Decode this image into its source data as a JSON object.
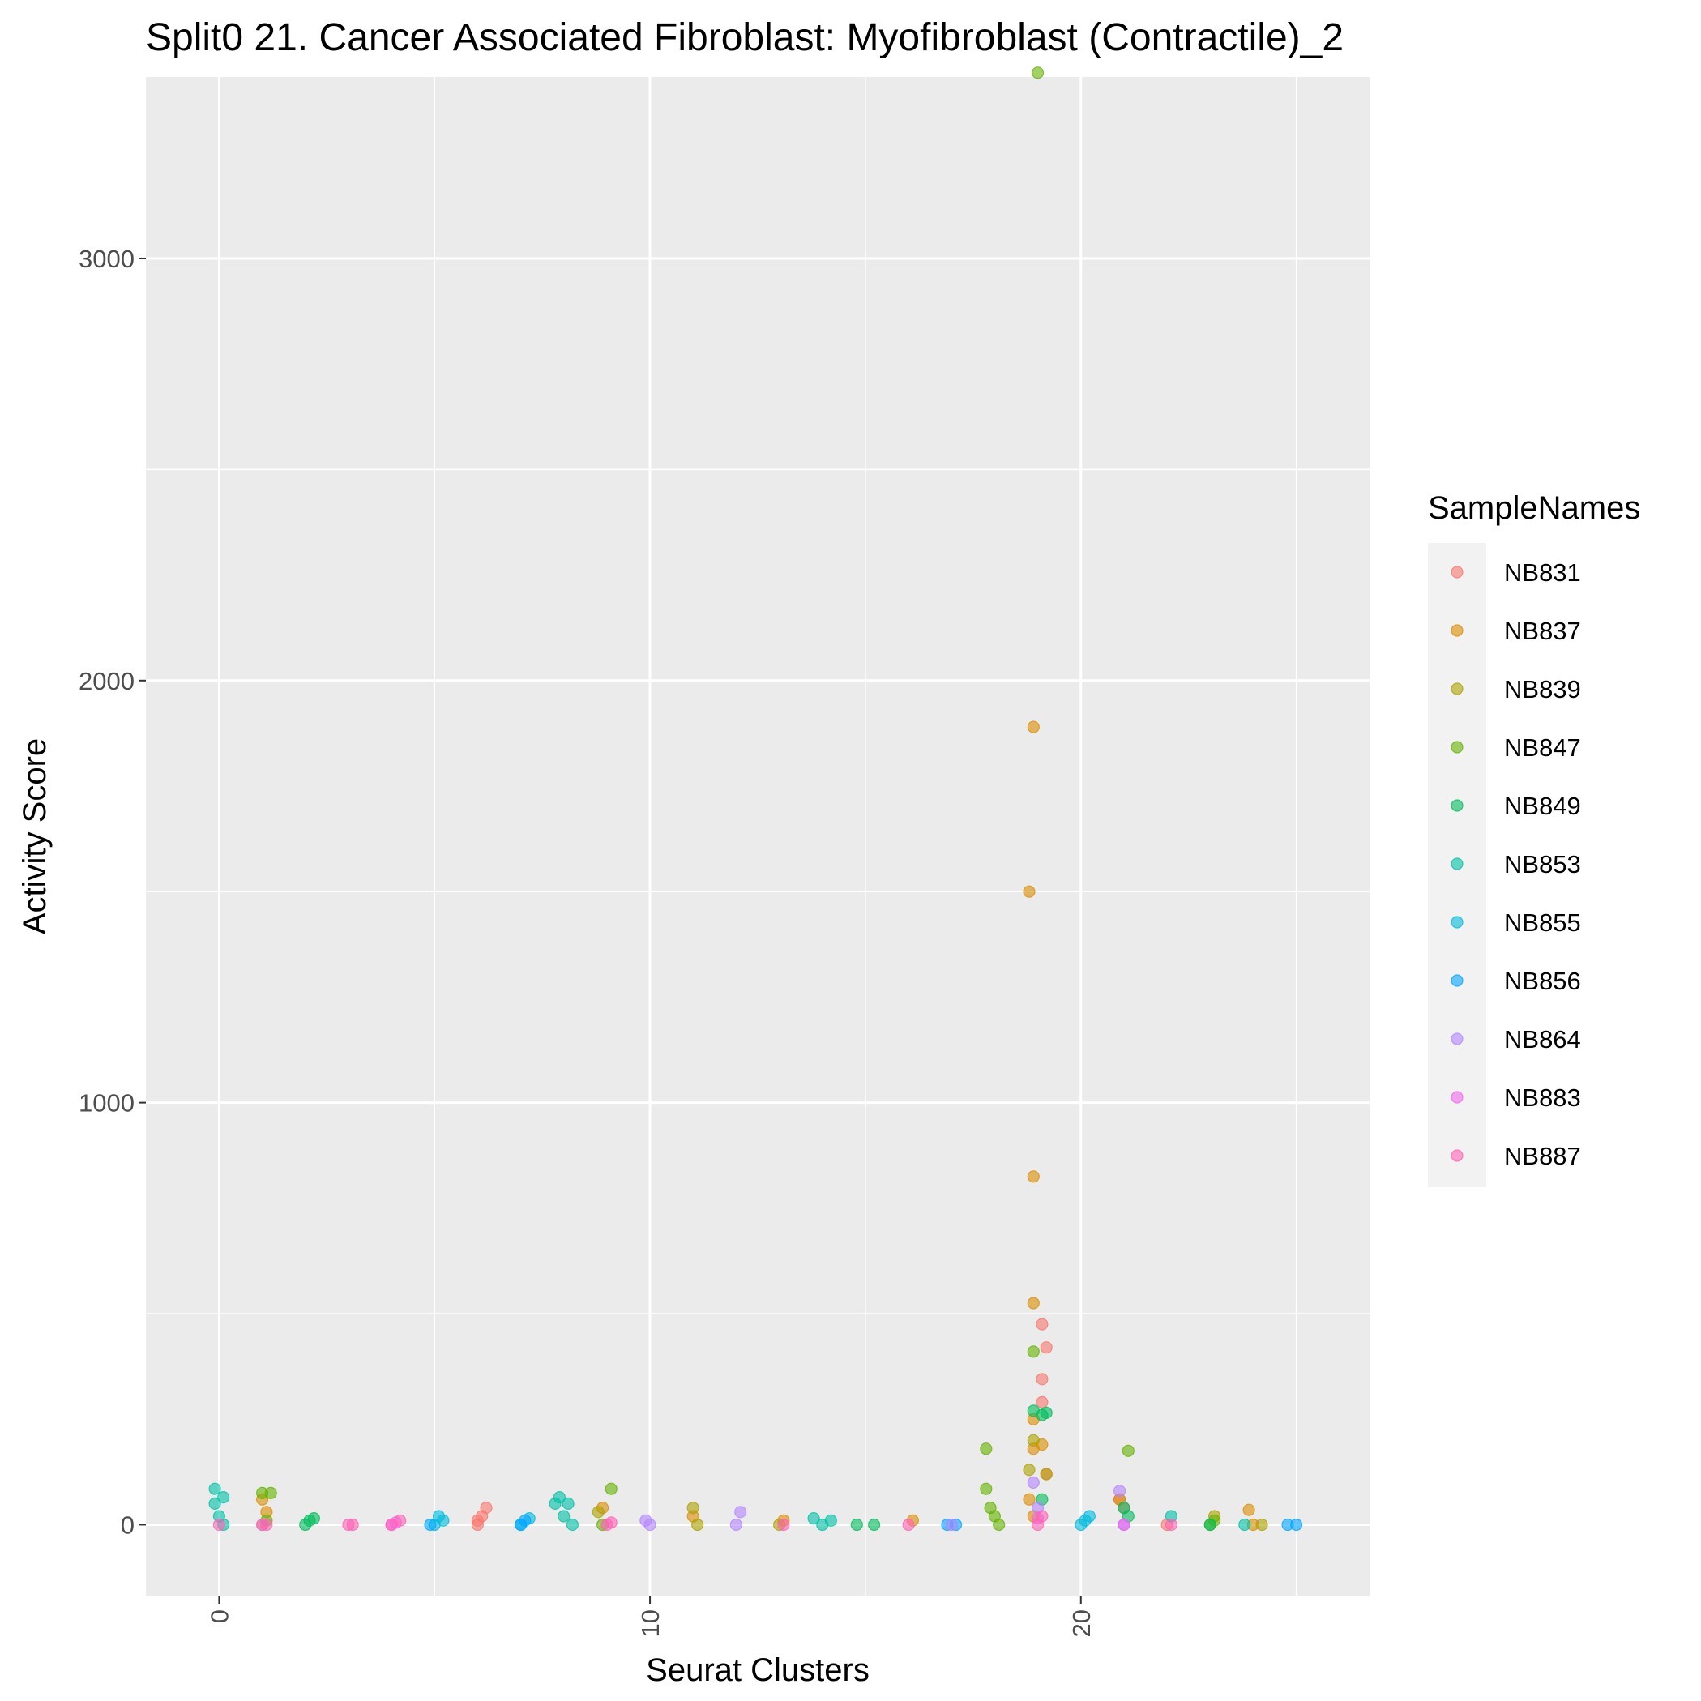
{
  "chart_data": {
    "type": "scatter",
    "title": "Split0 21. Cancer Associated Fibroblast: Myofibroblast (Contractile)_2",
    "xlabel": "Seurat Clusters",
    "ylabel": "Activity Score",
    "xlim": [
      -1.7,
      26.7
    ],
    "ylim": [
      -170,
      3430
    ],
    "x_ticks": [
      0,
      10,
      20
    ],
    "y_ticks": [
      0,
      1000,
      2000,
      3000
    ],
    "x_tick_labels": [
      "0",
      "10",
      "20"
    ],
    "y_tick_labels": [
      "0",
      "1000",
      "2000",
      "3000"
    ],
    "x_minor": [
      5,
      15,
      25
    ],
    "y_minor": [
      500,
      1500,
      2500
    ],
    "grid": true,
    "legend": {
      "title": "SampleNames",
      "position": "right",
      "entries": [
        "NB831",
        "NB837",
        "NB839",
        "NB847",
        "NB849",
        "NB853",
        "NB855",
        "NB856",
        "NB864",
        "NB883",
        "NB887"
      ]
    },
    "colors": {
      "NB831": "#F8766D",
      "NB837": "#DB8E00",
      "NB839": "#AEA200",
      "NB847": "#64B200",
      "NB849": "#00BD5C",
      "NB853": "#00C1A7",
      "NB855": "#00BADE",
      "NB856": "#00A6FF",
      "NB864": "#B385FF",
      "NB883": "#EF67EB",
      "NB887": "#FF63B6"
    },
    "series": [
      {
        "name": "NB831",
        "points": [
          [
            6,
            0
          ],
          [
            6.1,
            20
          ],
          [
            6.2,
            40
          ],
          [
            6,
            10
          ],
          [
            19.1,
            475
          ],
          [
            19.2,
            420
          ],
          [
            19.1,
            345
          ],
          [
            19.1,
            290
          ],
          [
            19.2,
            120
          ],
          [
            20.9,
            60
          ],
          [
            21,
            40
          ],
          [
            22,
            0
          ]
        ]
      },
      {
        "name": "NB837",
        "points": [
          [
            1,
            60
          ],
          [
            1.1,
            30
          ],
          [
            1,
            0
          ],
          [
            8.9,
            40
          ],
          [
            11,
            20
          ],
          [
            13.1,
            10
          ],
          [
            16.1,
            10
          ],
          [
            18.9,
            1890
          ],
          [
            18.8,
            1500
          ],
          [
            18.9,
            825
          ],
          [
            18.9,
            525
          ],
          [
            18.9,
            250
          ],
          [
            19.1,
            190
          ],
          [
            18.9,
            180
          ],
          [
            18.8,
            60
          ],
          [
            18.9,
            20
          ],
          [
            20.9,
            60
          ],
          [
            23.9,
            35
          ],
          [
            24,
            0
          ]
        ]
      },
      {
        "name": "NB839",
        "points": [
          [
            8.8,
            30
          ],
          [
            11,
            40
          ],
          [
            11.1,
            0
          ],
          [
            13,
            0
          ],
          [
            18.8,
            130
          ],
          [
            18.9,
            200
          ],
          [
            19.2,
            120
          ],
          [
            23.1,
            20
          ],
          [
            24.2,
            0
          ]
        ]
      },
      {
        "name": "NB847",
        "points": [
          [
            1,
            75
          ],
          [
            1.2,
            75
          ],
          [
            1.1,
            10
          ],
          [
            9.1,
            85
          ],
          [
            8.9,
            0
          ],
          [
            19,
            3440
          ],
          [
            18.9,
            410
          ],
          [
            17.8,
            180
          ],
          [
            17.8,
            85
          ],
          [
            17.9,
            40
          ],
          [
            18,
            20
          ],
          [
            18.1,
            0
          ],
          [
            21.1,
            175
          ],
          [
            23,
            0
          ],
          [
            23.1,
            10
          ]
        ]
      },
      {
        "name": "NB849",
        "points": [
          [
            2,
            0
          ],
          [
            2.1,
            10
          ],
          [
            2.2,
            15
          ],
          [
            14.8,
            0
          ],
          [
            15.2,
            0
          ],
          [
            18.9,
            270
          ],
          [
            19.1,
            260
          ],
          [
            19.2,
            265
          ],
          [
            19.1,
            60
          ],
          [
            21,
            40
          ],
          [
            21.1,
            20
          ],
          [
            23,
            0
          ]
        ]
      },
      {
        "name": "NB853",
        "points": [
          [
            -0.1,
            85
          ],
          [
            0.1,
            65
          ],
          [
            -0.1,
            50
          ],
          [
            0,
            20
          ],
          [
            0.1,
            0
          ],
          [
            7.9,
            65
          ],
          [
            7.8,
            50
          ],
          [
            8.1,
            50
          ],
          [
            8,
            20
          ],
          [
            8.2,
            0
          ],
          [
            14,
            0
          ],
          [
            13.8,
            15
          ],
          [
            14.2,
            10
          ],
          [
            22.1,
            20
          ],
          [
            23.8,
            0
          ]
        ]
      },
      {
        "name": "NB855",
        "points": [
          [
            5,
            0
          ],
          [
            5.2,
            10
          ],
          [
            5.1,
            20
          ],
          [
            7,
            0
          ],
          [
            7.2,
            15
          ],
          [
            20,
            0
          ],
          [
            20.2,
            20
          ],
          [
            20.1,
            10
          ]
        ]
      },
      {
        "name": "NB856",
        "points": [
          [
            4.9,
            0
          ],
          [
            7.1,
            10
          ],
          [
            7,
            0
          ],
          [
            16.9,
            0
          ],
          [
            17.1,
            0
          ],
          [
            24.8,
            0
          ],
          [
            25,
            0
          ]
        ]
      },
      {
        "name": "NB864",
        "points": [
          [
            10,
            0
          ],
          [
            9.9,
            10
          ],
          [
            12,
            0
          ],
          [
            12.1,
            30
          ],
          [
            17,
            0
          ],
          [
            18.9,
            100
          ],
          [
            19,
            40
          ],
          [
            20.9,
            80
          ],
          [
            21,
            0
          ]
        ]
      },
      {
        "name": "NB883",
        "points": [
          [
            1,
            0
          ],
          [
            4,
            0
          ],
          [
            4.1,
            5
          ],
          [
            19,
            15
          ],
          [
            21,
            0
          ]
        ]
      },
      {
        "name": "NB887",
        "points": [
          [
            0,
            0
          ],
          [
            1.1,
            0
          ],
          [
            3,
            0
          ],
          [
            3.1,
            0
          ],
          [
            4,
            0
          ],
          [
            4.2,
            10
          ],
          [
            9,
            0
          ],
          [
            9.1,
            5
          ],
          [
            13.1,
            0
          ],
          [
            16,
            0
          ],
          [
            19,
            0
          ],
          [
            19.1,
            20
          ],
          [
            22.1,
            0
          ]
        ]
      }
    ]
  }
}
